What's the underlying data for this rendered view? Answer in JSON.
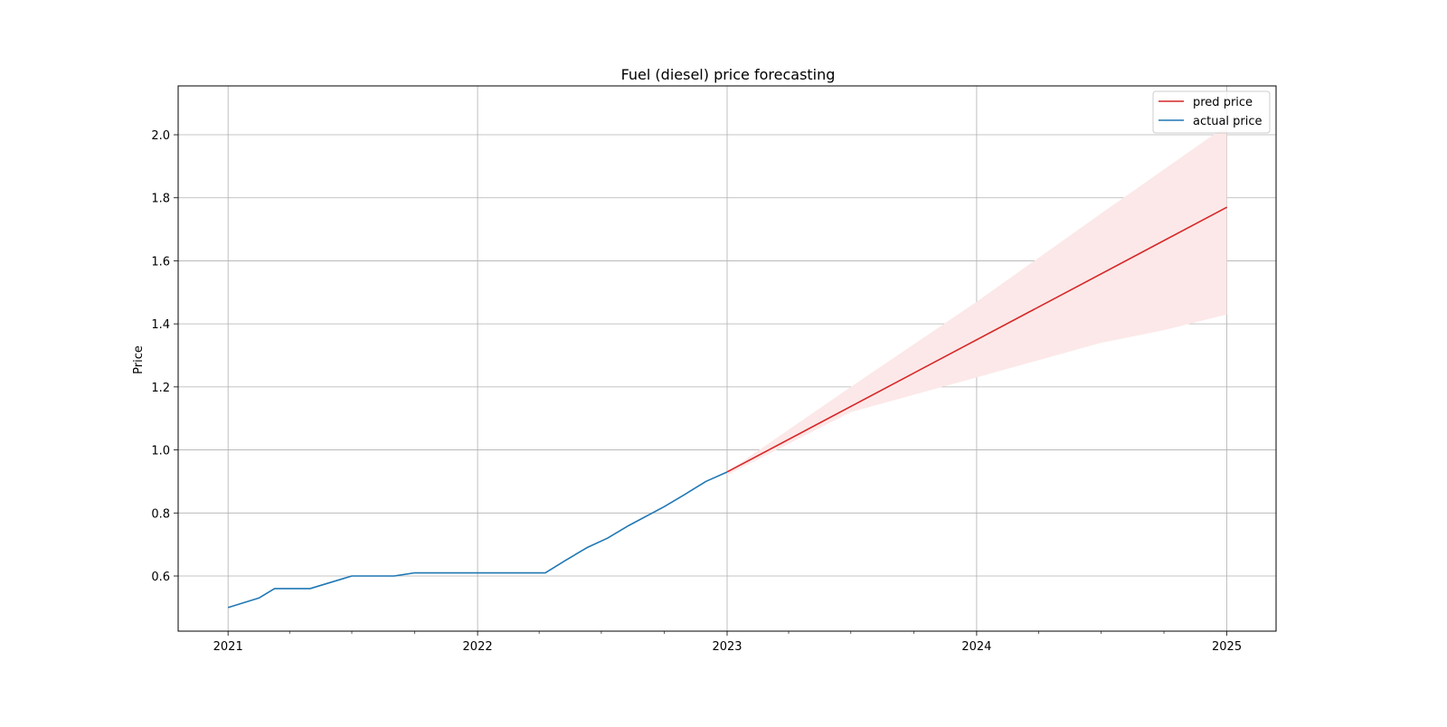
{
  "chart_data": {
    "type": "line",
    "title": "Fuel (diesel) price forecasting",
    "xlabel": "",
    "ylabel": "Price",
    "xlim": [
      "2020-10-20",
      "2025-03-14"
    ],
    "ylim": [
      0.425,
      2.155
    ],
    "x_ticks": [
      "2021",
      "2022",
      "2023",
      "2024",
      "2025"
    ],
    "y_ticks": [
      "0.6",
      "0.8",
      "1.0",
      "1.2",
      "1.4",
      "1.6",
      "1.8",
      "2.0"
    ],
    "grid": true,
    "legend_position": "top-right",
    "series": [
      {
        "name": "actual price",
        "color": "#1f77b4",
        "points": [
          [
            "2021-01-01",
            0.5
          ],
          [
            "2021-02-15",
            0.53
          ],
          [
            "2021-03-10",
            0.56
          ],
          [
            "2021-05-01",
            0.56
          ],
          [
            "2021-07-01",
            0.6
          ],
          [
            "2021-09-01",
            0.6
          ],
          [
            "2021-10-01",
            0.61
          ],
          [
            "2022-01-01",
            0.61
          ],
          [
            "2022-04-10",
            0.61
          ],
          [
            "2022-05-10",
            0.65
          ],
          [
            "2022-06-10",
            0.69
          ],
          [
            "2022-07-10",
            0.72
          ],
          [
            "2022-08-10",
            0.76
          ],
          [
            "2022-10-01",
            0.82
          ],
          [
            "2022-11-01",
            0.86
          ],
          [
            "2022-12-01",
            0.9
          ],
          [
            "2023-01-01",
            0.93
          ]
        ]
      },
      {
        "name": "pred price",
        "color": "#d62728",
        "points": [
          [
            "2023-01-01",
            0.93
          ],
          [
            "2025-01-01",
            1.77
          ]
        ]
      }
    ],
    "interval": {
      "color": "#fce8e8",
      "upper": [
        [
          "2023-01-01",
          0.93
        ],
        [
          "2023-07-01",
          1.2
        ],
        [
          "2024-01-01",
          1.47
        ],
        [
          "2024-07-01",
          1.75
        ],
        [
          "2024-10-01",
          1.89
        ],
        [
          "2025-01-01",
          2.03
        ]
      ],
      "lower": [
        [
          "2023-01-01",
          0.92
        ],
        [
          "2023-07-01",
          1.12
        ],
        [
          "2024-01-01",
          1.23
        ],
        [
          "2024-07-01",
          1.34
        ],
        [
          "2024-10-01",
          1.38
        ],
        [
          "2025-01-01",
          1.43
        ]
      ]
    }
  }
}
